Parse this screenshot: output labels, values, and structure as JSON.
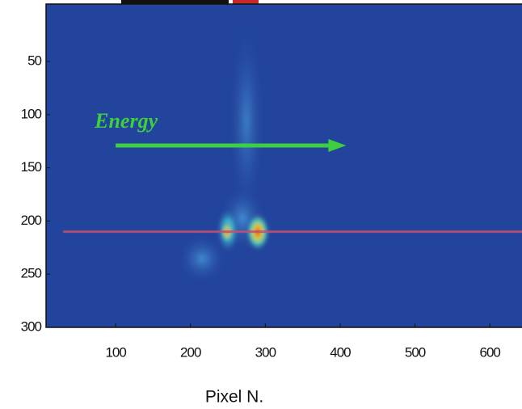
{
  "chart_data": {
    "type": "image",
    "xlabel": "Pixel N.",
    "xlim": [
      7,
      643
    ],
    "xticks": [
      100,
      200,
      300,
      400,
      500,
      600
    ],
    "ylim": [
      -4,
      300
    ],
    "yticks": [
      50,
      100,
      150,
      200,
      250,
      300
    ],
    "y_reversed": true,
    "background": "#23449c",
    "reference_line": {
      "y": 210,
      "color": "#c4506e"
    },
    "arrow": {
      "text": "Energy",
      "x": [
        100,
        408
      ],
      "y": 129,
      "color": "#3ecf3e"
    }
  }
}
